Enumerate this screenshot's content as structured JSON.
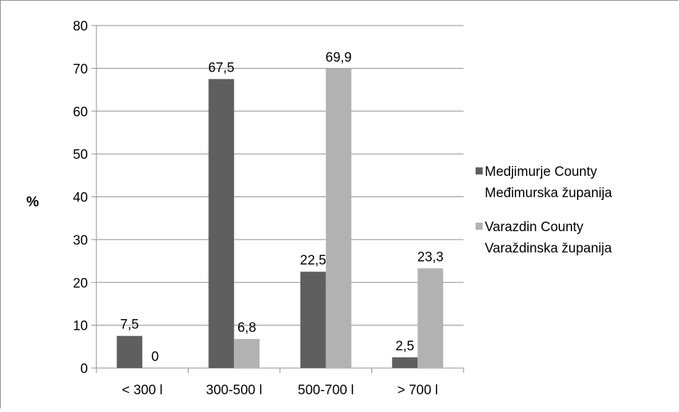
{
  "chart_data": {
    "type": "bar",
    "title": "",
    "xlabel": "",
    "ylabel": "%",
    "ylim": [
      0,
      80
    ],
    "ytick_step": 10,
    "yticks": [
      "0",
      "10",
      "20",
      "30",
      "40",
      "50",
      "60",
      "70",
      "80"
    ],
    "grid": true,
    "legend_position": "right",
    "categories": [
      "< 300 l",
      "300-500 l",
      "500-700 l",
      "> 700 l"
    ],
    "series": [
      {
        "name": [
          "Medjimurje County",
          "Međimurska županija"
        ],
        "color": "#5f5f5f",
        "values": [
          7.5,
          67.5,
          22.5,
          2.5
        ],
        "labels": [
          "7,5",
          "67,5",
          "22,5",
          "2,5"
        ]
      },
      {
        "name": [
          "Varazdin County",
          "Varaždinska županija"
        ],
        "color": "#b2b2b2",
        "values": [
          0,
          6.8,
          69.9,
          23.3
        ],
        "labels": [
          "0",
          "6,8",
          "69,9",
          "23,3"
        ]
      }
    ]
  }
}
